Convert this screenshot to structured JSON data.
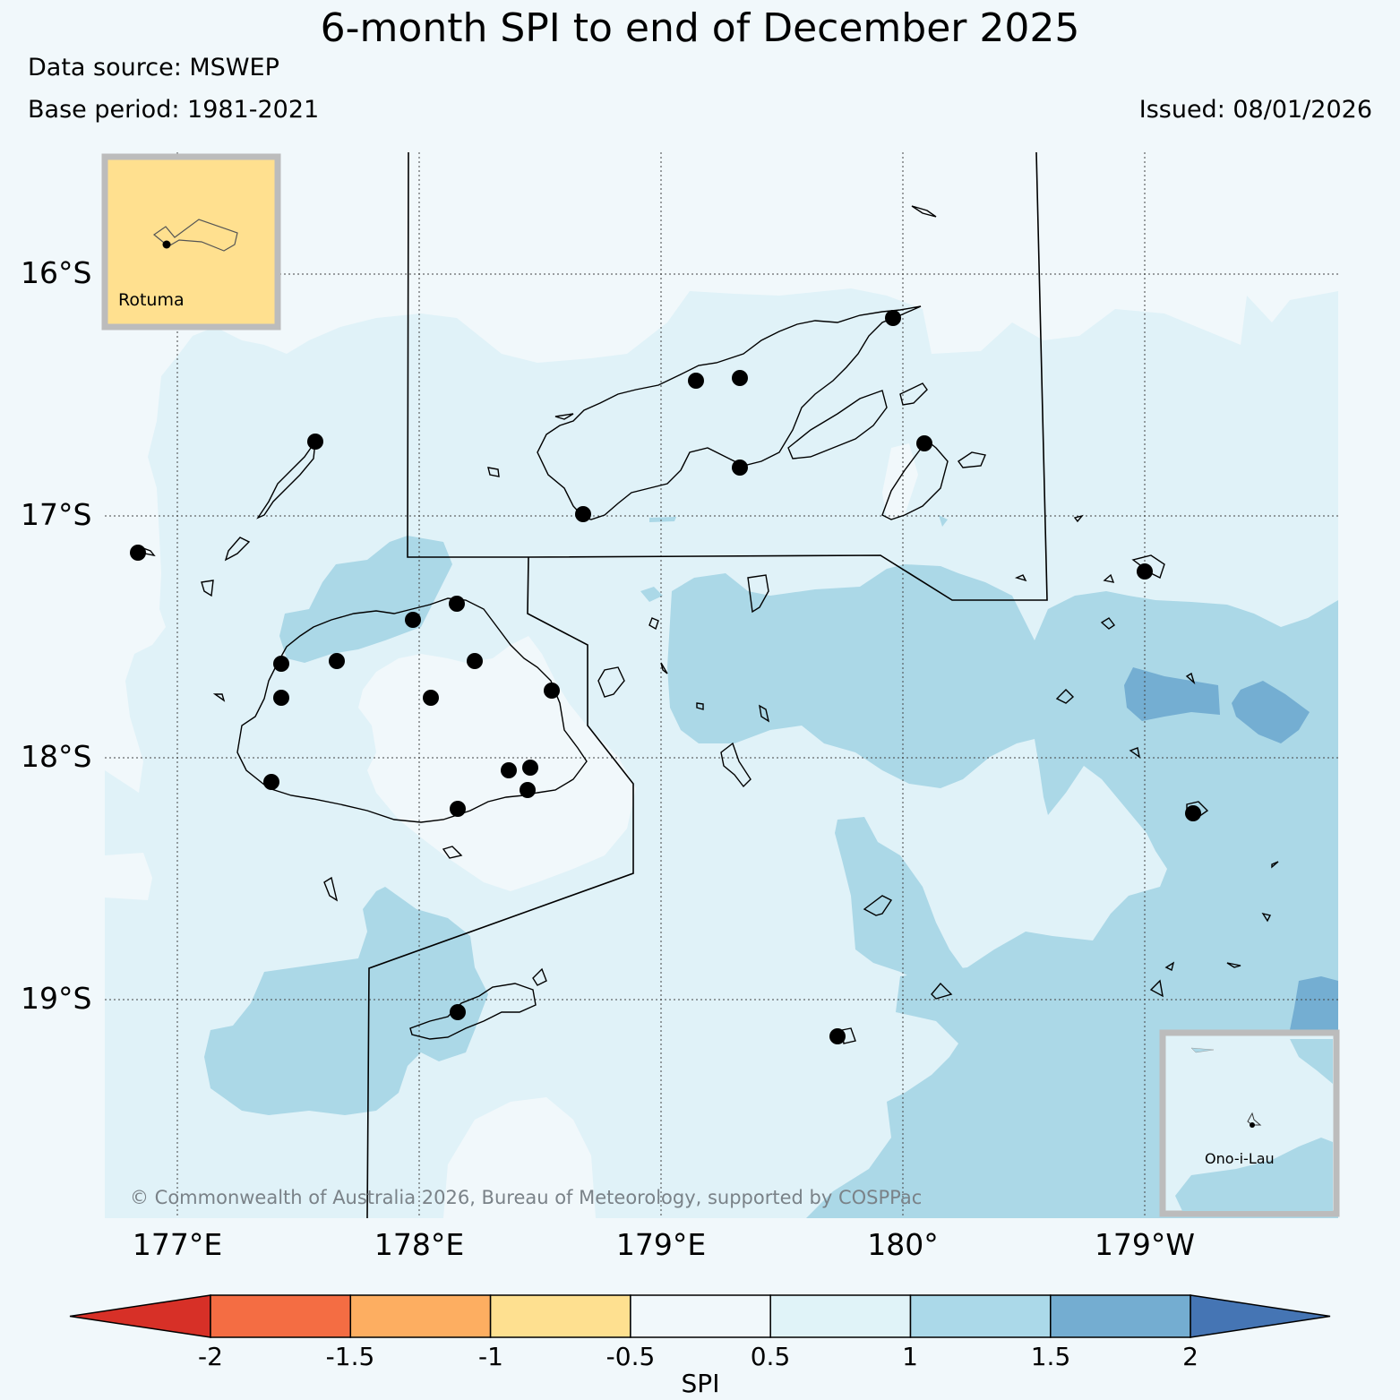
{
  "header": {
    "title": "6-month SPI to end of December 2025",
    "data_source": "Data source: MSWEP",
    "base_period": "Base period: 1981-2021",
    "issued": "Issued: 08/01/2026"
  },
  "map": {
    "lat_labels": [
      "16°S",
      "17°S",
      "18°S",
      "19°S"
    ],
    "lon_labels": [
      "177°E",
      "178°E",
      "179°E",
      "180°",
      "179°W"
    ],
    "copyright": "© Commonwealth of Australia 2026, Bureau of Meteorology, supported by COSPPac",
    "insets": [
      {
        "name": "Rotuma",
        "fill": "#ffe08f"
      },
      {
        "name": "Ono-i-Lau",
        "fill": "#e0f2f8"
      }
    ]
  },
  "colorbar": {
    "label": "SPI",
    "ticks": [
      "-2",
      "-1.5",
      "-1",
      "-0.5",
      "0.5",
      "1",
      "1.5",
      "2"
    ],
    "colors": [
      "#d73027",
      "#f46d43",
      "#fdae61",
      "#fee090",
      "#f1f8fb",
      "#e0f3f8",
      "#abd9e9",
      "#74add1",
      "#4575b4"
    ]
  },
  "colors": {
    "spi_neutral": "#f1f8fb",
    "spi_0_5_to_1": "#e0f2f8",
    "spi_1_to_1_5": "#abd8e7",
    "spi_1_5_to_2": "#74aed2"
  }
}
